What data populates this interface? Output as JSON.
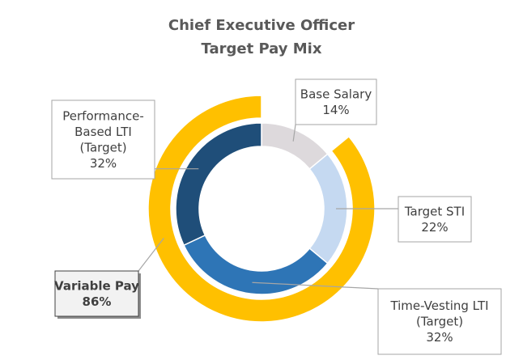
{
  "chart_data": {
    "type": "pie",
    "variant": "nested-donut",
    "title_lines": [
      "Chief Executive Officer",
      "Target Pay Mix"
    ],
    "inner_ring": [
      {
        "name": "Base Salary",
        "label_lines": [
          "Base Salary"
        ],
        "value": 14,
        "value_label": "14%",
        "color": "#DDD9DC"
      },
      {
        "name": "Target STI",
        "label_lines": [
          "Target STI"
        ],
        "value": 22,
        "value_label": "22%",
        "color": "#C5D9F1"
      },
      {
        "name": "Time-Vesting LTI (Target)",
        "label_lines": [
          "Time-Vesting LTI",
          "(Target)"
        ],
        "value": 32,
        "value_label": "32%",
        "color": "#2E75B6"
      },
      {
        "name": "Performance-Based LTI (Target)",
        "label_lines": [
          "Performance-",
          "Based LTI",
          "(Target)"
        ],
        "value": 32,
        "value_label": "32%",
        "color": "#1F4E79"
      }
    ],
    "outer_ring": [
      {
        "name": "Base Salary gap",
        "value": 14,
        "color": "none"
      },
      {
        "name": "Variable Pay",
        "label_lines": [
          "Variable Pay"
        ],
        "value": 86,
        "value_label": "86%",
        "color": "#FFC000"
      }
    ],
    "start_angle_deg": 0,
    "direction": "clockwise",
    "grid": false,
    "legend": "none"
  }
}
